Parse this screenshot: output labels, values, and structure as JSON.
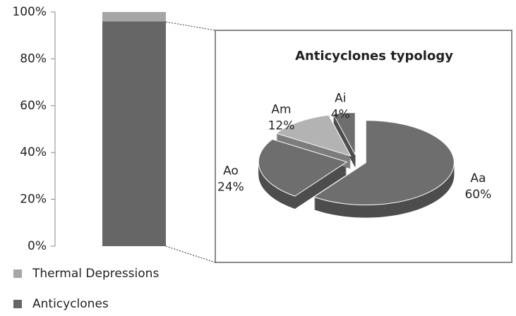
{
  "chart_data": [
    {
      "type": "stacked_bar",
      "categories": [
        null
      ],
      "series": [
        {
          "name": "Thermal Depressions",
          "color": "#a6a6a6",
          "values": [
            4
          ]
        },
        {
          "name": "Anticyclones",
          "color": "#666666",
          "values": [
            96
          ]
        }
      ],
      "ylim": [
        0,
        100
      ],
      "yticks": [
        {
          "value": 0,
          "label": "0%"
        },
        {
          "value": 20,
          "label": "20%"
        },
        {
          "value": 40,
          "label": "40%"
        },
        {
          "value": 60,
          "label": "60%"
        },
        {
          "value": 80,
          "label": "80%"
        },
        {
          "value": 100,
          "label": "100%"
        }
      ],
      "grid": false,
      "legend": "bottom-left"
    },
    {
      "type": "pie",
      "title": "Anticyclones typology",
      "categories": [
        "Aa",
        "Ao",
        "Am",
        "Ai"
      ],
      "values": [
        60,
        24,
        12,
        4
      ],
      "value_labels": [
        "60%",
        "24%",
        "12%",
        "4%"
      ],
      "colors": [
        "#6e6e6e",
        "#6e6e6e",
        "#b3b3b3",
        "#6e6e6e"
      ],
      "exploded": true,
      "three_d": true
    }
  ]
}
